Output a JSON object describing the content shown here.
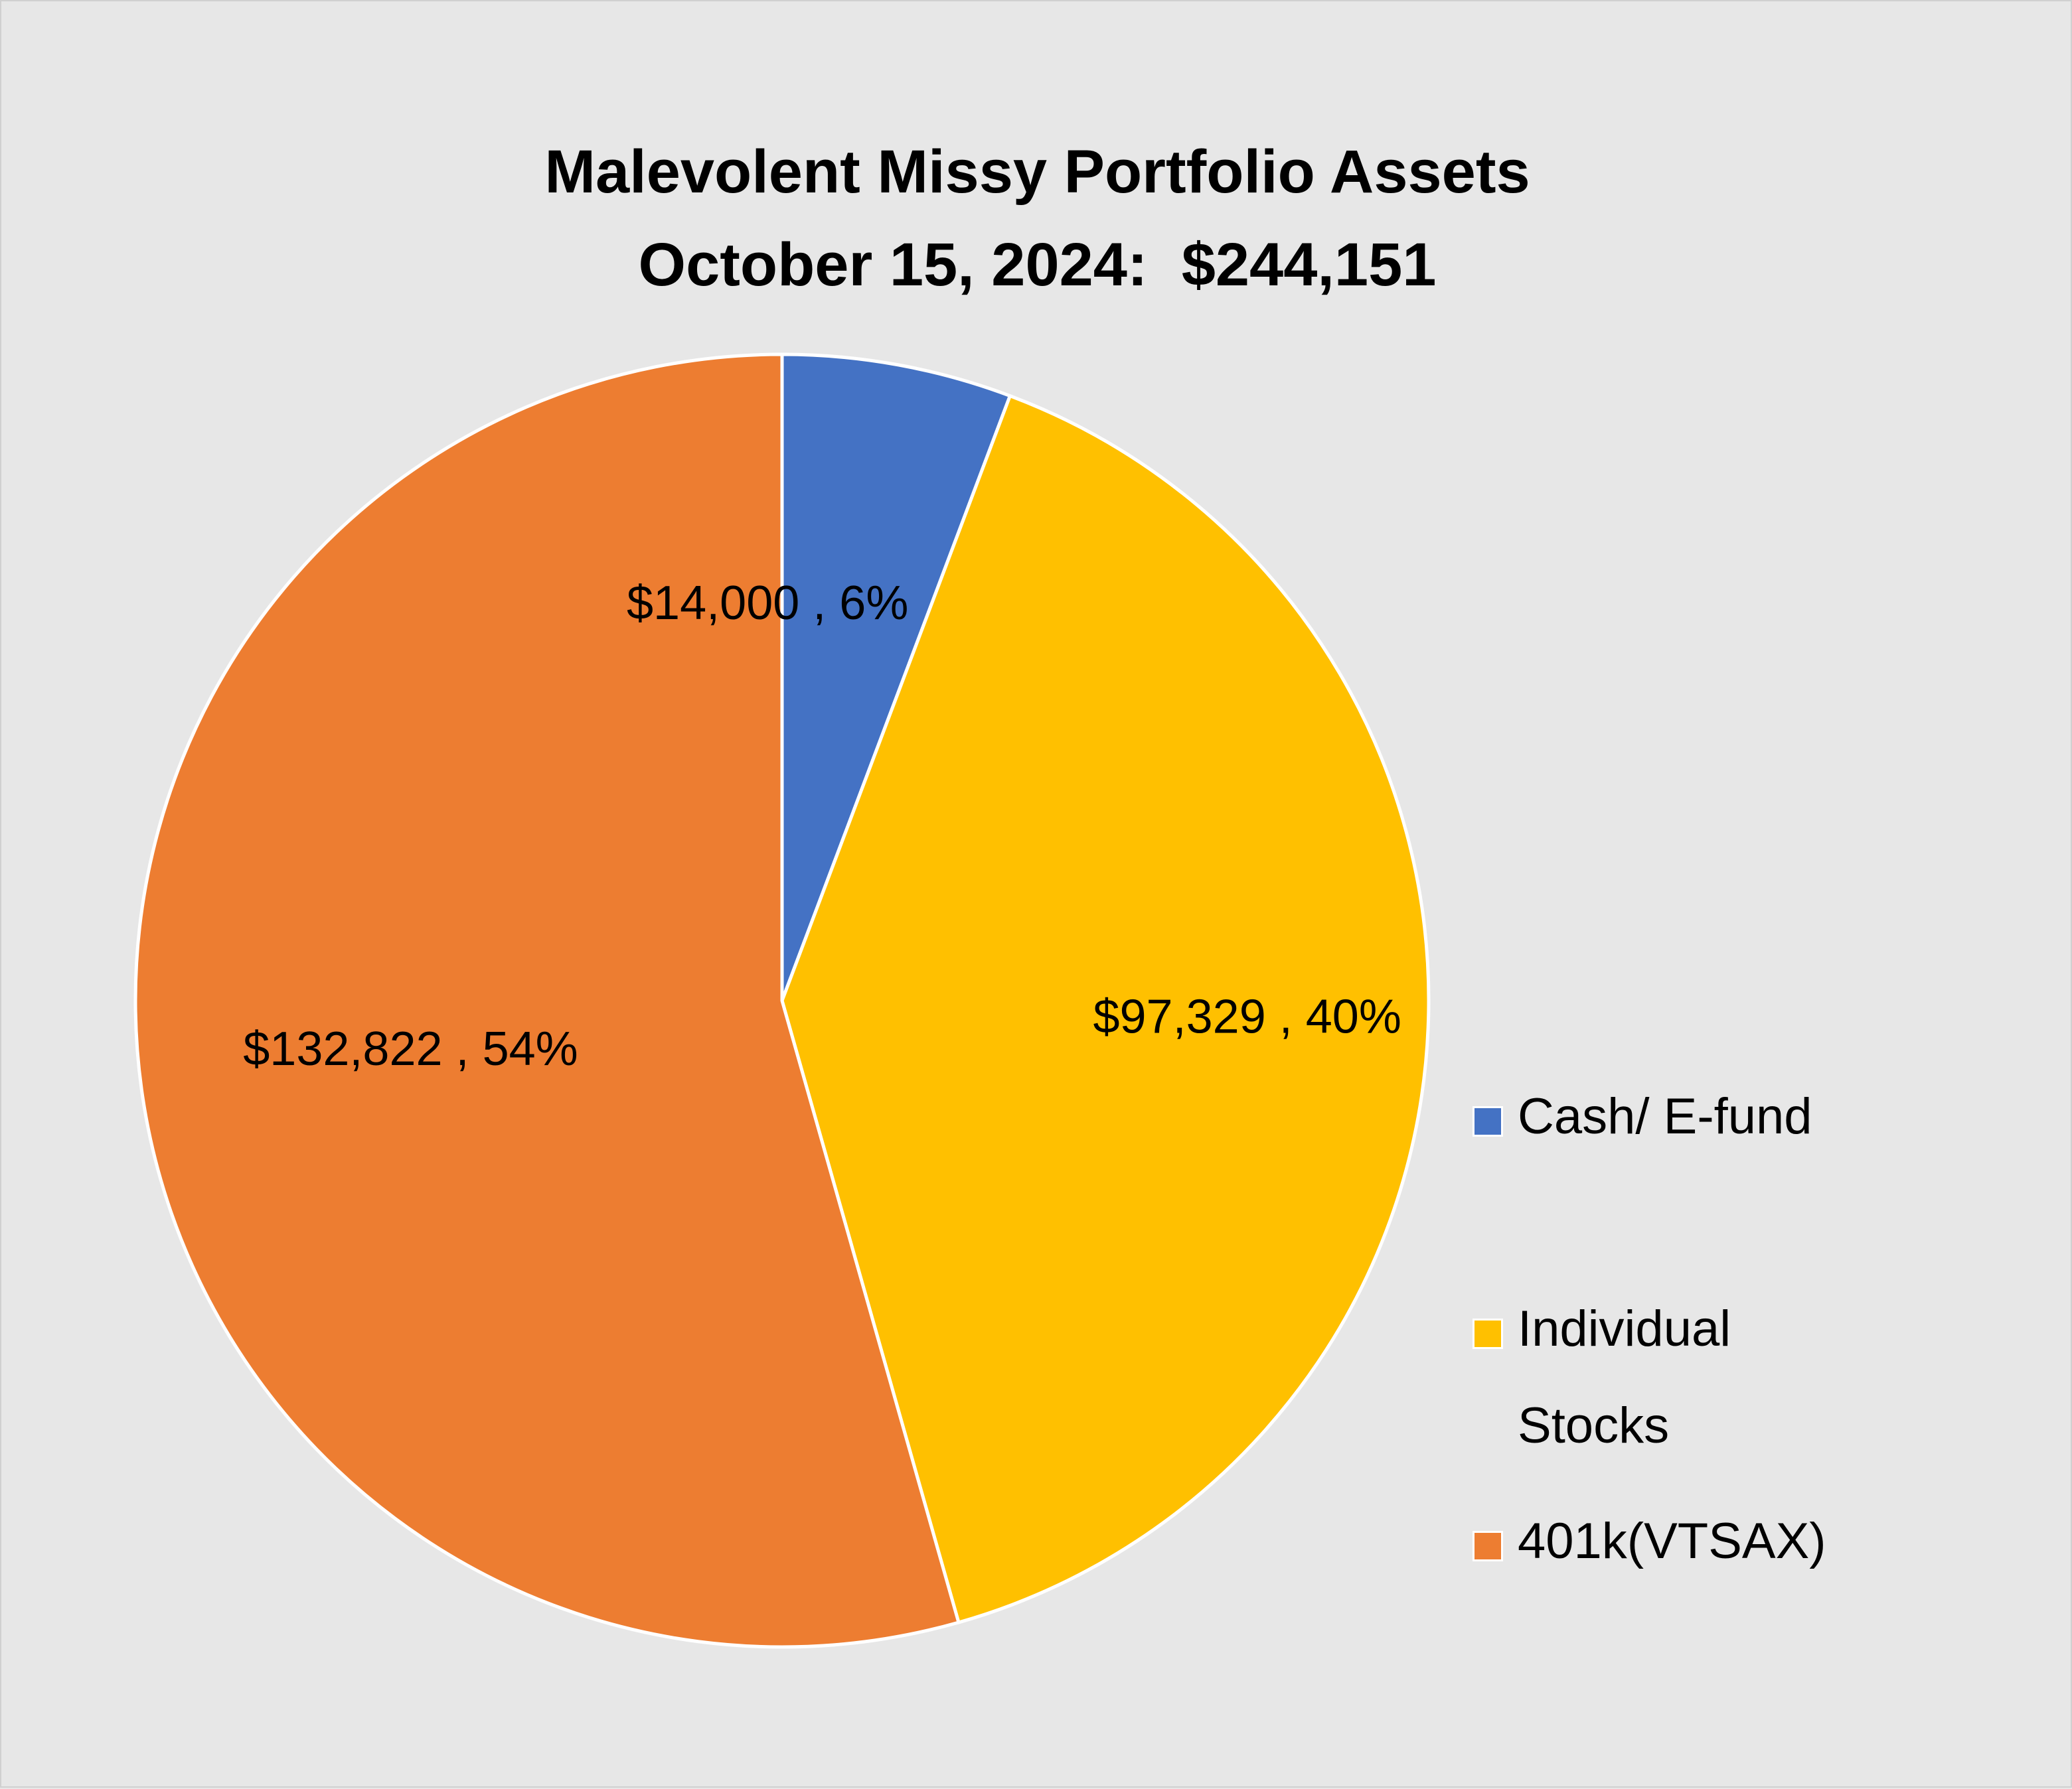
{
  "chart_data": {
    "type": "pie",
    "title_lines": [
      "Malevolent Missy Portfolio Assets",
      "October 15, 2024:  $244,151"
    ],
    "categories": [
      "Cash/ E-fund",
      "Individual Stocks",
      "401k(VTSAX)"
    ],
    "values": [
      14000,
      97329,
      132822
    ],
    "percentages": [
      6,
      40,
      54
    ],
    "data_labels": [
      "$14,000 , 6%",
      "$97,329 , 40%",
      "$132,822 , 54%"
    ],
    "colors": [
      "#4472c4",
      "#ffc000",
      "#ed7d31"
    ],
    "start_angle_deg": 0,
    "direction": "clockwise",
    "legend_position": "right",
    "legend_labels": [
      [
        "Cash/ E-fund"
      ],
      [
        "Individual",
        "Stocks"
      ],
      [
        "401k(VTSAX)"
      ]
    ]
  }
}
